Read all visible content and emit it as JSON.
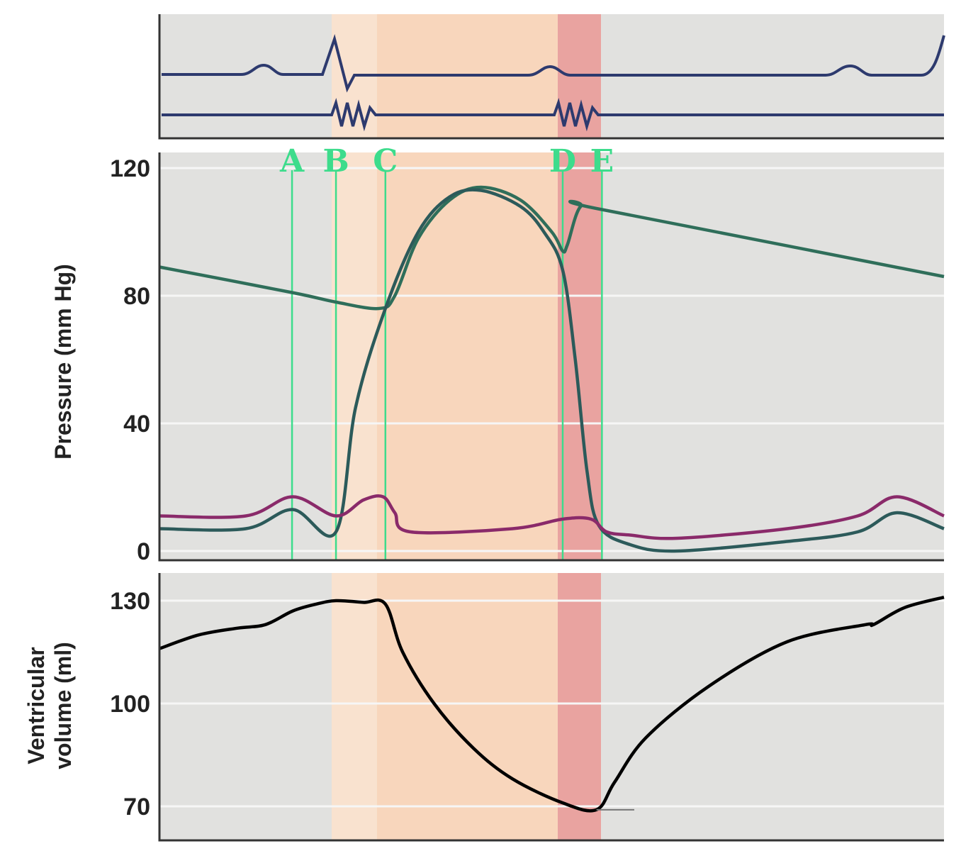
{
  "chart_data": [
    {
      "type": "line",
      "panel": "electrocardiogram and heart sounds",
      "note_ticks": "no axis printed",
      "series": []
    },
    {
      "type": "line",
      "ylabel": "Pressure (mm Hg)",
      "ylim": [
        0,
        120
      ],
      "yticks": [
        "120",
        "80",
        "40",
        "0"
      ],
      "grid": true,
      "markers": [
        "A",
        "B",
        "C",
        "D",
        "E"
      ],
      "marker_times": [
        0.169,
        0.225,
        0.288,
        0.514,
        0.564
      ],
      "series": [
        {
          "color": "#2f6e5a",
          "x": [
            0,
            0.169,
            0.225,
            0.28,
            0.3,
            0.33,
            0.37,
            0.41,
            0.46,
            0.5,
            0.514,
            0.52,
            0.537,
            0.564,
            1
          ],
          "y": [
            89,
            81,
            78,
            76,
            80,
            98,
            110,
            114,
            110,
            100,
            94,
            96,
            108,
            107,
            86
          ]
        },
        {
          "color": "#2c5a5a",
          "x": [
            0,
            0.11,
            0.17,
            0.225,
            0.25,
            0.288,
            0.33,
            0.37,
            0.41,
            0.46,
            0.49,
            0.514,
            0.53,
            0.545,
            0.56,
            0.6,
            0.66,
            0.8,
            0.89,
            0.94,
            1
          ],
          "y": [
            7,
            7,
            13,
            6,
            45,
            76,
            100,
            111,
            113,
            108,
            100,
            88,
            60,
            25,
            8,
            2,
            0,
            3,
            6,
            12,
            7
          ]
        },
        {
          "color": "#8a2a6a",
          "x": [
            0,
            0.11,
            0.17,
            0.225,
            0.26,
            0.285,
            0.3,
            0.32,
            0.45,
            0.514,
            0.55,
            0.57,
            0.6,
            0.66,
            0.8,
            0.89,
            0.94,
            1
          ],
          "y": [
            11,
            11,
            17,
            11,
            16,
            17,
            12,
            6,
            7,
            10,
            10,
            6,
            5,
            4,
            7,
            11,
            17,
            11
          ]
        }
      ]
    },
    {
      "type": "line",
      "ylabel": "Ventricular volume (ml)",
      "ylim": [
        70,
        130
      ],
      "yticks": [
        "130",
        "100",
        "70"
      ],
      "grid": true,
      "series": [
        {
          "color": "#000000",
          "x": [
            0,
            0.05,
            0.1,
            0.135,
            0.17,
            0.2,
            0.225,
            0.26,
            0.288,
            0.31,
            0.35,
            0.4,
            0.45,
            0.514,
            0.557,
            0.58,
            0.62,
            0.7,
            0.8,
            0.9,
            0.91,
            0.95,
            1
          ],
          "y": [
            116,
            120,
            122,
            123,
            127,
            129,
            130,
            129.5,
            129,
            115,
            100,
            87,
            78,
            71,
            69,
            77,
            90,
            105,
            118,
            123,
            123,
            128,
            131
          ]
        }
      ]
    }
  ],
  "labels": {
    "pressure_axis": [
      "Pressure (mm Hg)"
    ],
    "volume_axis": [
      "Ventricular",
      "volume (ml)"
    ],
    "markers": [
      "A",
      "B",
      "C",
      "D",
      "E"
    ]
  },
  "colors": {
    "band_light": "#f9e2cf",
    "band_main": "#f8d6bc",
    "band_dark": "#e9a3a0",
    "background": "#e1e1df",
    "marker_line": "#3ddc8c"
  }
}
